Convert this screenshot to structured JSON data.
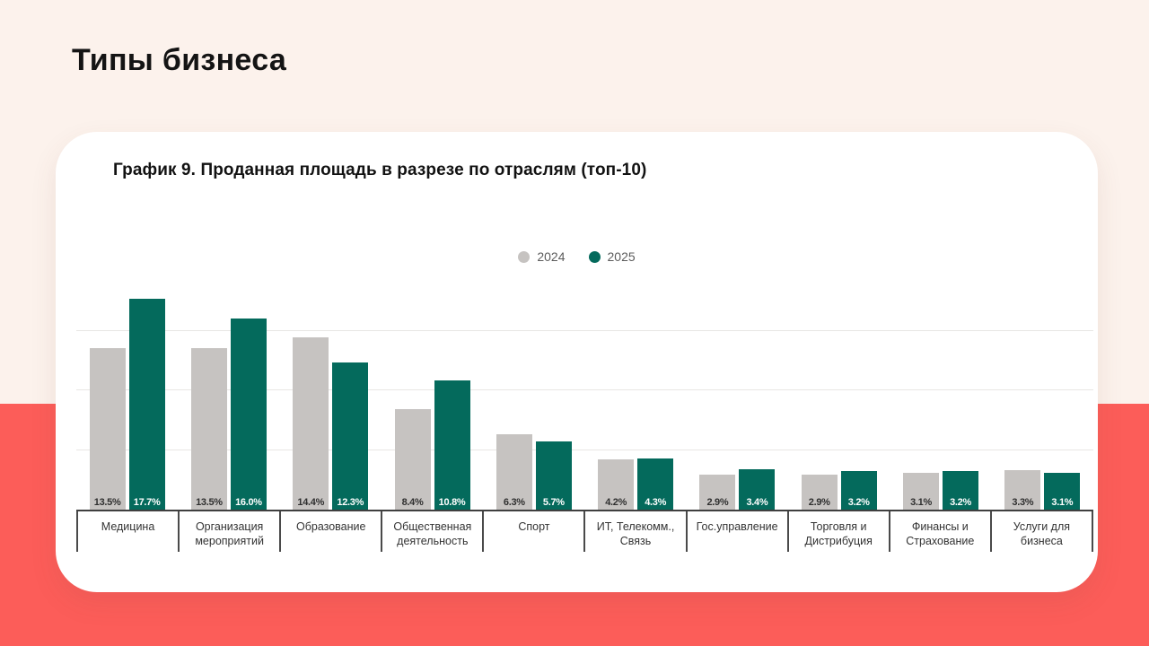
{
  "slide": {
    "title": "Типы бизнеса",
    "background_top_color": "#FCF2EC",
    "background_bottom_color": "#FC5D59"
  },
  "chart": {
    "title": "График 9. Проданная площадь в разрезе по отраслям (топ-10)"
  },
  "chart_data": {
    "type": "bar",
    "title": "График 9. Проданная площадь в разрезе по отраслям (топ-10)",
    "unit": "%",
    "categories": [
      "Медицина",
      "Организация\nмероприятий",
      "Образование",
      "Общественная\nдеятельность",
      "Спорт",
      "ИТ, Телекомм.,\nСвязь",
      "Гос.управление",
      "Торговля и\nДистрибуция",
      "Финансы и\nСтрахование",
      "Услуги для\nбизнеса"
    ],
    "series": [
      {
        "name": "2024",
        "color": "#C6C3C1",
        "label_text_color": "#2F2F2F",
        "values": [
          13.5,
          13.5,
          14.4,
          8.4,
          6.3,
          4.2,
          2.9,
          2.9,
          3.1,
          3.3
        ]
      },
      {
        "name": "2025",
        "color": "#046A5C",
        "label_text_color": "#FFFFFF",
        "values": [
          17.7,
          16.0,
          12.3,
          10.8,
          5.7,
          4.3,
          3.4,
          3.2,
          3.2,
          3.1
        ]
      }
    ],
    "ylim": [
      0,
      20
    ],
    "gridlines": [
      5,
      10,
      15
    ],
    "grid": true,
    "legend_position": "top-center",
    "value_labels": "inside-bottom"
  }
}
